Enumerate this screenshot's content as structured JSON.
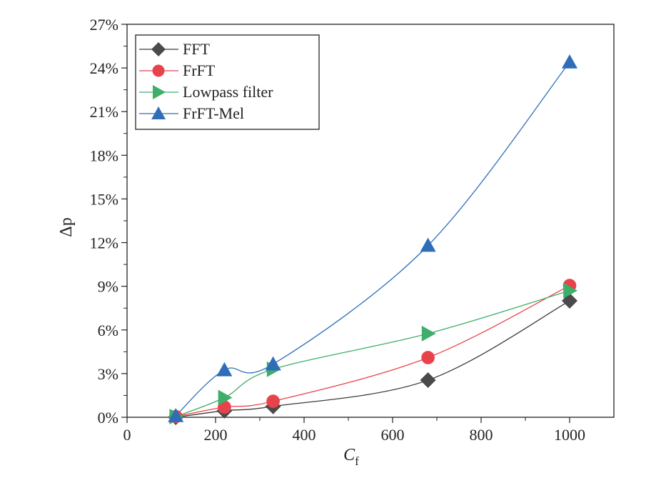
{
  "chart_data": {
    "type": "scatter",
    "xlabel": "C",
    "xlabel_sub": "f",
    "ylabel": "Δp",
    "xlim": [
      0,
      1100
    ],
    "ylim": [
      0,
      27
    ],
    "x_ticks": [
      0,
      200,
      400,
      600,
      800,
      1000
    ],
    "x_tick_labels": [
      "0",
      "200",
      "400",
      "600",
      "800",
      "1000"
    ],
    "y_ticks": [
      0,
      3,
      6,
      9,
      12,
      15,
      18,
      21,
      24,
      27
    ],
    "y_tick_labels": [
      "0%",
      "3%",
      "6%",
      "9%",
      "12%",
      "15%",
      "18%",
      "21%",
      "24%",
      "27%"
    ],
    "legend_position": "top-left",
    "x": [
      110,
      220,
      330,
      680,
      1000
    ],
    "series": [
      {
        "name": "FFT",
        "marker": "diamond",
        "color": "#4a4a4a",
        "line_color": "#3a3a3a",
        "values": [
          0.0,
          0.45,
          0.75,
          2.55,
          8.0
        ]
      },
      {
        "name": "FrFT",
        "marker": "circle",
        "color": "#e8434a",
        "line_color": "#e8434a",
        "values": [
          0.05,
          0.7,
          1.1,
          4.1,
          9.05
        ]
      },
      {
        "name": "Lowpass filter",
        "marker": "triangle-right",
        "color": "#3fae6a",
        "line_color": "#3fae6a",
        "values": [
          0.05,
          1.35,
          3.3,
          5.75,
          8.7
        ]
      },
      {
        "name": "FrFT-Mel",
        "marker": "triangle-up",
        "color": "#2f6db8",
        "line_color": "#2f6db8",
        "values": [
          0.1,
          3.25,
          3.65,
          11.8,
          24.4
        ]
      }
    ]
  }
}
